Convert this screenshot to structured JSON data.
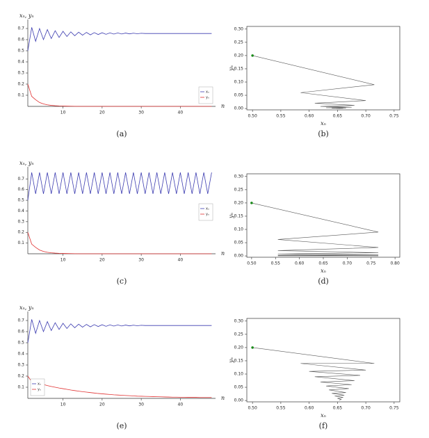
{
  "chart_data": [
    {
      "type": "line",
      "caption": "(a)",
      "ylabel": "xₙ, yₙ",
      "xlabel": "n",
      "legend": "lower right",
      "x": [
        1,
        2,
        3,
        4,
        5,
        6,
        7,
        8,
        9,
        10,
        11,
        12,
        13,
        14,
        15,
        16,
        17,
        18,
        19,
        20,
        21,
        22,
        23,
        24,
        25,
        26,
        27,
        28,
        29,
        30,
        31,
        32,
        33,
        34,
        35,
        36,
        37,
        38,
        39,
        40,
        41,
        42,
        43,
        44,
        45,
        46,
        47,
        48
      ],
      "series": [
        {
          "name": "xₙ",
          "color": "#3b3bb0",
          "values": [
            0.5,
            0.71,
            0.585,
            0.7,
            0.6,
            0.69,
            0.61,
            0.68,
            0.62,
            0.675,
            0.628,
            0.67,
            0.635,
            0.667,
            0.64,
            0.665,
            0.643,
            0.663,
            0.646,
            0.662,
            0.648,
            0.661,
            0.65,
            0.66,
            0.651,
            0.659,
            0.652,
            0.658,
            0.653,
            0.657,
            0.655,
            0.655,
            0.655,
            0.655,
            0.655,
            0.655,
            0.655,
            0.655,
            0.655,
            0.655,
            0.655,
            0.655,
            0.655,
            0.655,
            0.655,
            0.655,
            0.655,
            0.655
          ]
        },
        {
          "name": "yₙ",
          "color": "#e03030",
          "values": [
            0.2,
            0.09,
            0.06,
            0.035,
            0.022,
            0.014,
            0.009,
            0.006,
            0.004,
            0.003,
            0.002,
            0.0015,
            0.001,
            0,
            0,
            0,
            0,
            0,
            0,
            0,
            0,
            0,
            0,
            0,
            0,
            0,
            0,
            0,
            0,
            0,
            0,
            0,
            0,
            0,
            0,
            0,
            0,
            0,
            0,
            0,
            0,
            0,
            0,
            0,
            0,
            0,
            0,
            0
          ]
        }
      ],
      "xlim": [
        1,
        49
      ],
      "xticks": [
        10,
        20,
        30,
        40
      ],
      "ylim": [
        0,
        0.75
      ],
      "yticks": [
        0.1,
        0.2,
        0.3,
        0.4,
        0.5,
        0.6,
        0.7
      ]
    },
    {
      "type": "phase",
      "caption": "(b)",
      "xlabel": "xₙ",
      "ylabel": "yₙ",
      "color": "#555555",
      "start_color": "#1a8a1a",
      "x": [
        0.5,
        0.715,
        0.585,
        0.7,
        0.61,
        0.68,
        0.62,
        0.675,
        0.63,
        0.665,
        0.64,
        0.66,
        0.648,
        0.658,
        0.652,
        0.656
      ],
      "values": [
        0.2,
        0.09,
        0.06,
        0.03,
        0.02,
        0.012,
        0.008,
        0.005,
        0.003,
        0.002,
        0.0012,
        0.0008,
        0.0005,
        0.0003,
        0.0002,
        0.0001
      ],
      "xlim": [
        0.49,
        0.76
      ],
      "xticks": [
        {
          "value": 0.5,
          "label": "0.50"
        },
        {
          "value": 0.55,
          "label": "0.55"
        },
        {
          "value": 0.6,
          "label": "0.60"
        },
        {
          "value": 0.65,
          "label": "0.65"
        },
        {
          "value": 0.7,
          "label": "0.70"
        },
        {
          "value": 0.75,
          "label": "0.75"
        }
      ],
      "ylim": [
        -0.005,
        0.31
      ],
      "yticks": [
        {
          "value": 0,
          "label": "0.00"
        },
        {
          "value": 0.05,
          "label": "0.05"
        },
        {
          "value": 0.1,
          "label": "0.10"
        },
        {
          "value": 0.15,
          "label": "0.15"
        },
        {
          "value": 0.2,
          "label": "0.20"
        },
        {
          "value": 0.25,
          "label": "0.25"
        },
        {
          "value": 0.3,
          "label": "0.30"
        }
      ]
    },
    {
      "type": "line",
      "caption": "(c)",
      "ylabel": "xₙ, yₙ",
      "xlabel": "n",
      "legend": "center right",
      "x": [
        1,
        2,
        3,
        4,
        5,
        6,
        7,
        8,
        9,
        10,
        11,
        12,
        13,
        14,
        15,
        16,
        17,
        18,
        19,
        20,
        21,
        22,
        23,
        24,
        25,
        26,
        27,
        28,
        29,
        30,
        31,
        32,
        33,
        34,
        35,
        36,
        37,
        38,
        39,
        40,
        41,
        42,
        43,
        44,
        45,
        46,
        47,
        48
      ],
      "series": [
        {
          "name": "xₙ",
          "color": "#3b3bb0",
          "values": [
            0.5,
            0.76,
            0.56,
            0.76,
            0.56,
            0.76,
            0.56,
            0.76,
            0.56,
            0.76,
            0.56,
            0.76,
            0.56,
            0.76,
            0.56,
            0.76,
            0.56,
            0.76,
            0.56,
            0.76,
            0.56,
            0.76,
            0.56,
            0.76,
            0.56,
            0.76,
            0.56,
            0.76,
            0.56,
            0.76,
            0.56,
            0.76,
            0.56,
            0.76,
            0.56,
            0.76,
            0.56,
            0.76,
            0.56,
            0.76,
            0.56,
            0.76,
            0.56,
            0.76,
            0.56,
            0.76,
            0.56,
            0.76
          ]
        },
        {
          "name": "yₙ",
          "color": "#e03030",
          "values": [
            0.2,
            0.09,
            0.06,
            0.035,
            0.022,
            0.014,
            0.009,
            0.006,
            0.004,
            0.003,
            0.002,
            0.0015,
            0.001,
            0,
            0,
            0,
            0,
            0,
            0,
            0,
            0,
            0,
            0,
            0,
            0,
            0,
            0,
            0,
            0,
            0,
            0,
            0,
            0,
            0,
            0,
            0,
            0,
            0,
            0,
            0,
            0,
            0,
            0,
            0,
            0,
            0,
            0,
            0
          ]
        }
      ],
      "xlim": [
        1,
        49
      ],
      "xticks": [
        10,
        20,
        30,
        40
      ],
      "ylim": [
        0,
        0.78
      ],
      "yticks": [
        0.1,
        0.2,
        0.3,
        0.4,
        0.5,
        0.6,
        0.7
      ]
    },
    {
      "type": "phase",
      "caption": "(d)",
      "xlabel": "xₙ",
      "ylabel": "yₙ",
      "color": "#555555",
      "start_color": "#1a8a1a",
      "x": [
        0.5,
        0.765,
        0.555,
        0.765,
        0.555,
        0.765,
        0.555,
        0.765,
        0.555,
        0.765,
        0.555,
        0.765
      ],
      "values": [
        0.2,
        0.09,
        0.062,
        0.032,
        0.02,
        0.012,
        0.007,
        0.004,
        0.002,
        0.001,
        0.0005,
        0.0002
      ],
      "xlim": [
        0.49,
        0.81
      ],
      "xticks": [
        {
          "value": 0.5,
          "label": "0.50"
        },
        {
          "value": 0.55,
          "label": "0.55"
        },
        {
          "value": 0.6,
          "label": "0.60"
        },
        {
          "value": 0.65,
          "label": "0.65"
        },
        {
          "value": 0.7,
          "label": "0.70"
        },
        {
          "value": 0.75,
          "label": "0.75"
        },
        {
          "value": 0.8,
          "label": "0.80"
        }
      ],
      "ylim": [
        -0.005,
        0.31
      ],
      "yticks": [
        {
          "value": 0,
          "label": "0.00"
        },
        {
          "value": 0.05,
          "label": "0.05"
        },
        {
          "value": 0.1,
          "label": "0.10"
        },
        {
          "value": 0.15,
          "label": "0.15"
        },
        {
          "value": 0.2,
          "label": "0.20"
        },
        {
          "value": 0.25,
          "label": "0.25"
        },
        {
          "value": 0.3,
          "label": "0.30"
        }
      ]
    },
    {
      "type": "line",
      "caption": "(e)",
      "ylabel": "xₙ, yₙ",
      "xlabel": "n",
      "legend": "lower left",
      "x": [
        1,
        2,
        3,
        4,
        5,
        6,
        7,
        8,
        9,
        10,
        11,
        12,
        13,
        14,
        15,
        16,
        17,
        18,
        19,
        20,
        21,
        22,
        23,
        24,
        25,
        26,
        27,
        28,
        29,
        30,
        31,
        32,
        33,
        34,
        35,
        36,
        37,
        38,
        39,
        40,
        41,
        42,
        43,
        44,
        45,
        46,
        47,
        48
      ],
      "series": [
        {
          "name": "xₙ",
          "color": "#3b3bb0",
          "values": [
            0.5,
            0.71,
            0.585,
            0.7,
            0.6,
            0.69,
            0.61,
            0.68,
            0.62,
            0.675,
            0.628,
            0.67,
            0.635,
            0.667,
            0.64,
            0.665,
            0.643,
            0.663,
            0.646,
            0.662,
            0.648,
            0.661,
            0.65,
            0.66,
            0.651,
            0.659,
            0.652,
            0.658,
            0.653,
            0.657,
            0.655,
            0.655,
            0.655,
            0.655,
            0.655,
            0.655,
            0.655,
            0.655,
            0.655,
            0.655,
            0.655,
            0.655,
            0.655,
            0.655,
            0.655,
            0.655,
            0.655,
            0.655
          ]
        },
        {
          "name": "yₙ",
          "color": "#e03030",
          "values": [
            0.2,
            0.15,
            0.145,
            0.135,
            0.125,
            0.115,
            0.107,
            0.1,
            0.093,
            0.087,
            0.081,
            0.075,
            0.07,
            0.065,
            0.06,
            0.056,
            0.052,
            0.048,
            0.044,
            0.041,
            0.038,
            0.035,
            0.032,
            0.03,
            0.028,
            0.026,
            0.024,
            0.022,
            0.02,
            0.019,
            0.018,
            0.017,
            0.016,
            0.015,
            0.014,
            0.013,
            0.012,
            0.011,
            0.011,
            0.01,
            0.01,
            0.009,
            0.009,
            0.009,
            0.008,
            0.008,
            0.008,
            0.008
          ]
        }
      ],
      "xlim": [
        1,
        49
      ],
      "xticks": [
        10,
        20,
        30,
        40
      ],
      "ylim": [
        0,
        0.75
      ],
      "yticks": [
        0.1,
        0.2,
        0.3,
        0.4,
        0.5,
        0.6,
        0.7
      ]
    },
    {
      "type": "phase",
      "caption": "(f)",
      "xlabel": "xₙ",
      "ylabel": "yₙ",
      "color": "#555555",
      "start_color": "#1a8a1a",
      "x": [
        0.5,
        0.715,
        0.585,
        0.7,
        0.6,
        0.69,
        0.61,
        0.68,
        0.62,
        0.675,
        0.63,
        0.67,
        0.635,
        0.665,
        0.64,
        0.662,
        0.645,
        0.66,
        0.65,
        0.657,
        0.653
      ],
      "values": [
        0.2,
        0.14,
        0.14,
        0.115,
        0.11,
        0.095,
        0.09,
        0.075,
        0.07,
        0.06,
        0.055,
        0.045,
        0.04,
        0.03,
        0.027,
        0.02,
        0.017,
        0.012,
        0.008,
        0.004,
        0.002
      ],
      "xlim": [
        0.49,
        0.76
      ],
      "xticks": [
        {
          "value": 0.5,
          "label": "0.50"
        },
        {
          "value": 0.55,
          "label": "0.55"
        },
        {
          "value": 0.6,
          "label": "0.60"
        },
        {
          "value": 0.65,
          "label": "0.65"
        },
        {
          "value": 0.7,
          "label": "0.70"
        },
        {
          "value": 0.75,
          "label": "0.75"
        }
      ],
      "ylim": [
        -0.005,
        0.31
      ],
      "yticks": [
        {
          "value": 0,
          "label": "0.00"
        },
        {
          "value": 0.05,
          "label": "0.05"
        },
        {
          "value": 0.1,
          "label": "0.10"
        },
        {
          "value": 0.15,
          "label": "0.15"
        },
        {
          "value": 0.2,
          "label": "0.20"
        },
        {
          "value": 0.25,
          "label": "0.25"
        },
        {
          "value": 0.3,
          "label": "0.30"
        }
      ]
    }
  ]
}
